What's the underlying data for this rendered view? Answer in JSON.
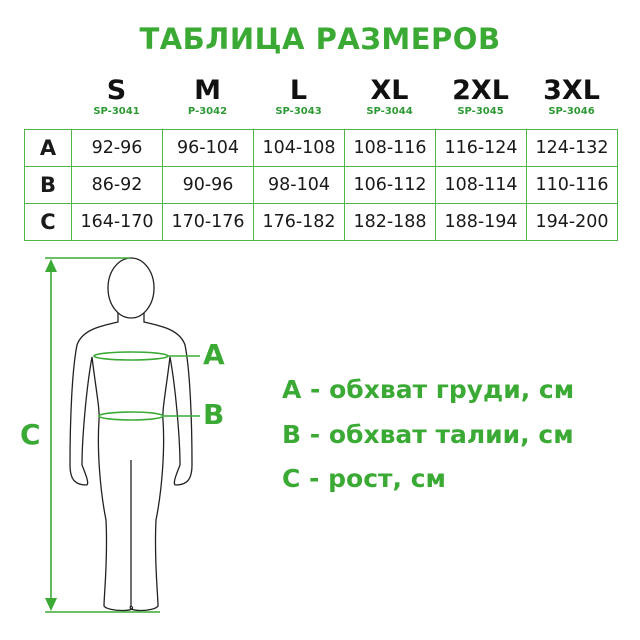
{
  "title": "ТАБЛИЦА РАЗМЕРОВ",
  "sizes": [
    {
      "size": "S",
      "code": "SP-3041"
    },
    {
      "size": "M",
      "code": "P-3042"
    },
    {
      "size": "L",
      "code": "SP-3043"
    },
    {
      "size": "XL",
      "code": "SP-3044"
    },
    {
      "size": "2XL",
      "code": "SP-3045"
    },
    {
      "size": "3XL",
      "code": "SP-3046"
    }
  ],
  "rows": [
    {
      "label": "A",
      "values": [
        "92-96",
        "96-104",
        "104-108",
        "108-116",
        "116-124",
        "124-132"
      ]
    },
    {
      "label": "B",
      "values": [
        "86-92",
        "90-96",
        "98-104",
        "106-112",
        "108-114",
        "110-116"
      ]
    },
    {
      "label": "C",
      "values": [
        "164-170",
        "170-176",
        "176-182",
        "182-188",
        "188-194",
        "194-200"
      ]
    }
  ],
  "figure": {
    "label_a": "A",
    "label_b": "B",
    "label_c": "C"
  },
  "legend": [
    "A - обхват груди, см",
    "B - обхват талии, см",
    "C - рост, см"
  ],
  "colors": {
    "accent": "#3aaa35",
    "text": "#111111"
  }
}
